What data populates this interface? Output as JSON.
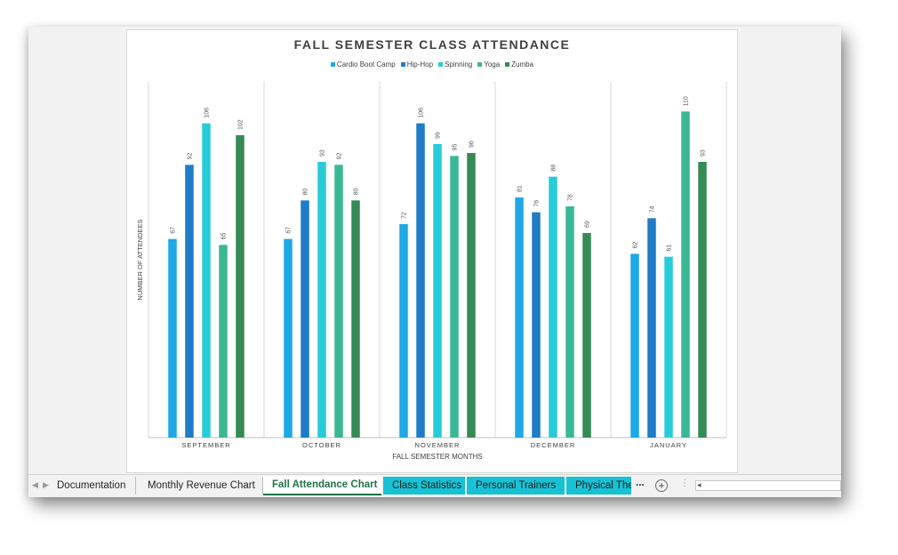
{
  "tabs": {
    "nav_prev": "◀",
    "nav_next": "▶",
    "items": [
      {
        "label": "Documentation"
      },
      {
        "label": "Monthly Revenue Chart"
      },
      {
        "label": "Fall Attendance Chart"
      },
      {
        "label": "Class Statistics"
      },
      {
        "label": "Personal Trainers"
      },
      {
        "label": "Physical The"
      }
    ],
    "more": "...",
    "add": "+",
    "splitter": "⋮",
    "scroll_left": "◂"
  },
  "chart_data": {
    "type": "bar",
    "title": "FALL SEMESTER CLASS ATTENDANCE",
    "xlabel": "FALL SEMESTER MONTHS",
    "ylabel": "NUMBER OF ATTENDEES",
    "categories": [
      "SEPTEMBER",
      "OCTOBER",
      "NOVEMBER",
      "DECEMBER",
      "JANUARY"
    ],
    "ylim": [
      0,
      120
    ],
    "grid": "vertical separators",
    "legend_position": "top",
    "series": [
      {
        "name": "Cardio Boot Camp",
        "color": "#1ea8e6",
        "values": [
          67,
          67,
          72,
          81,
          62
        ]
      },
      {
        "name": "Hip-Hop",
        "color": "#1f7cc7",
        "values": [
          92,
          80,
          106,
          76,
          74
        ]
      },
      {
        "name": "Spinning",
        "color": "#28ccd8",
        "values": [
          106,
          93,
          99,
          88,
          61
        ]
      },
      {
        "name": "Yoga",
        "color": "#3ab894",
        "values": [
          65,
          92,
          95,
          78,
          110
        ]
      },
      {
        "name": "Zumba",
        "color": "#368a55",
        "values": [
          102,
          80,
          96,
          69,
          93
        ]
      }
    ]
  }
}
